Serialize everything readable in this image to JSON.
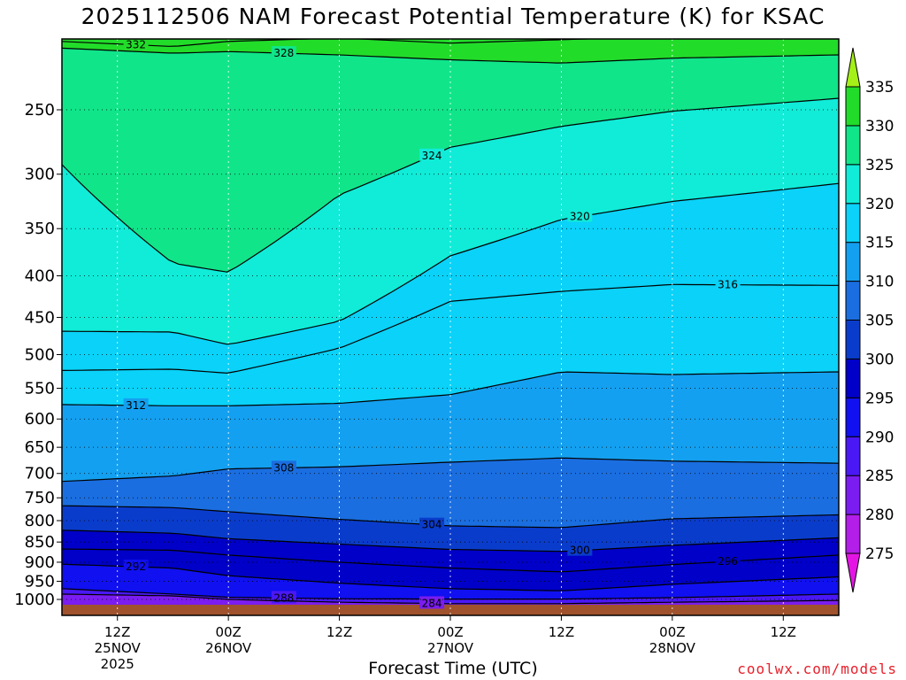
{
  "chart_data": {
    "type": "heatmap",
    "title": "2025112506 NAM Forecast Potential Temperature (K) for KSAC",
    "xlabel": "Forecast Time (UTC)",
    "ylabel": "",
    "y_axis": {
      "scale": "log",
      "inverted": true,
      "ticks": [
        250,
        300,
        350,
        400,
        450,
        500,
        550,
        600,
        650,
        700,
        750,
        800,
        850,
        900,
        950,
        1000
      ]
    },
    "x_axis": {
      "ticks": [
        {
          "hour": 12,
          "label": "12Z",
          "date": "25NOV",
          "year": "2025"
        },
        {
          "hour": 24,
          "label": "00Z",
          "date": "26NOV"
        },
        {
          "hour": 36,
          "label": "12Z"
        },
        {
          "hour": 48,
          "label": "00Z",
          "date": "27NOV"
        },
        {
          "hour": 60,
          "label": "12Z"
        },
        {
          "hour": 72,
          "label": "00Z",
          "date": "28NOV"
        },
        {
          "hour": 84,
          "label": "12Z"
        }
      ],
      "range": [
        6,
        90
      ]
    },
    "colorbar": {
      "levels": [
        275,
        280,
        285,
        290,
        295,
        300,
        305,
        310,
        315,
        320,
        325,
        330,
        335
      ],
      "colors": [
        "#e415e4",
        "#b31ee8",
        "#7b1df0",
        "#4a18f5",
        "#1010f0",
        "#0000c8",
        "#0a3ccc",
        "#1a6ee0",
        "#14a0f0",
        "#0ad2f8",
        "#10ecd8",
        "#10e58a",
        "#22dc2a",
        "#a4f018"
      ]
    },
    "isotherms": [
      {
        "value": 332,
        "pressure": [
          206,
          209,
          206,
          204,
          207,
          205,
          203,
          203
        ]
      },
      {
        "value": 328,
        "pressure": [
          210,
          213,
          212,
          214,
          217,
          219,
          216,
          214
        ]
      },
      {
        "value": 324,
        "pressure": [
          292,
          386,
          396,
          318,
          278,
          262,
          251,
          242
        ]
      },
      {
        "value": 320,
        "pressure": [
          468,
          469,
          486,
          455,
          378,
          341,
          324,
          308
        ]
      },
      {
        "value": 316,
        "pressure": [
          523,
          521,
          527,
          491,
          430,
          418,
          410,
          411
        ]
      },
      {
        "value": 312,
        "pressure": [
          576,
          578,
          578,
          574,
          560,
          525,
          529,
          525
        ]
      },
      {
        "value": 308,
        "pressure": [
          716,
          705,
          691,
          687,
          678,
          670,
          676,
          680
        ]
      },
      {
        "value": 304,
        "pressure": [
          767,
          771,
          780,
          797,
          812,
          816,
          796,
          787
        ]
      },
      {
        "value": 300,
        "pressure": [
          822,
          829,
          842,
          855,
          868,
          873,
          858,
          840
        ]
      },
      {
        "value": 296,
        "pressure": [
          867,
          870,
          882,
          900,
          915,
          925,
          906,
          882
        ]
      },
      {
        "value": 292,
        "pressure": [
          905,
          915,
          935,
          955,
          970,
          976,
          958,
          938
        ]
      },
      {
        "value": 288,
        "pressure": [
          970,
          985,
          994,
          998,
          999,
          999,
          995,
          985
        ]
      },
      {
        "value": 284,
        "pressure": [
          985,
          990,
          1000,
          1008,
          1012,
          1012,
          1008,
          1003
        ]
      }
    ],
    "isotherm_hours": [
      6,
      18,
      24,
      36,
      48,
      60,
      72,
      90
    ],
    "surface_color": "#a0522d",
    "grid": true
  },
  "labels": {
    "title": "2025112506 NAM Forecast Potential Temperature (K) for KSAC",
    "xlabel": "Forecast Time (UTC)",
    "credit": "coolwx.com/models"
  }
}
